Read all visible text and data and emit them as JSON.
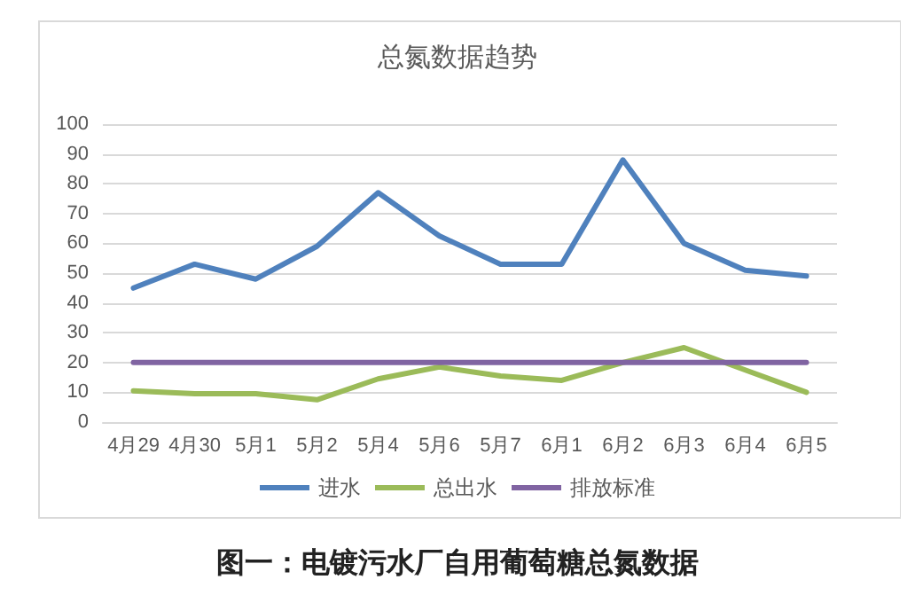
{
  "chart_data": {
    "type": "line",
    "title": "总氮数据趋势",
    "categories": [
      "4月29",
      "4月30",
      "5月1",
      "5月2",
      "5月4",
      "5月6",
      "5月7",
      "6月1",
      "6月2",
      "6月3",
      "6月4",
      "6月5"
    ],
    "series": [
      {
        "name": "进水",
        "color": "#4f81bd",
        "values": [
          45,
          53,
          48,
          59,
          77,
          62.5,
          53,
          53,
          88,
          60,
          51,
          49
        ]
      },
      {
        "name": "总出水",
        "color": "#9bbb59",
        "values": [
          10.5,
          9.5,
          9.5,
          7.5,
          14.5,
          18.5,
          15.5,
          14,
          20,
          25,
          17.5,
          10
        ]
      },
      {
        "name": "排放标准",
        "color": "#8064a2",
        "values": [
          20,
          20,
          20,
          20,
          20,
          20,
          20,
          20,
          20,
          20,
          20,
          20
        ]
      }
    ],
    "ylim": [
      0,
      100
    ],
    "yticks": [
      0,
      10,
      20,
      30,
      40,
      50,
      60,
      70,
      80,
      90,
      100
    ],
    "grid": "y",
    "legend": "bottom",
    "marker": "none",
    "line_style": "solid",
    "annotations": [
      "图一：电镀污水厂自用葡萄糖总氮数据"
    ]
  }
}
